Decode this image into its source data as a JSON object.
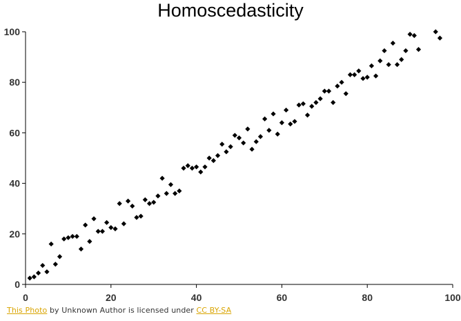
{
  "chart_data": {
    "type": "scatter",
    "title": "Homoscedasticity",
    "xlabel": "",
    "ylabel": "",
    "xlim": [
      0,
      100
    ],
    "ylim": [
      0,
      100
    ],
    "xticks": [
      "0",
      "20",
      "40",
      "60",
      "80",
      "100"
    ],
    "yticks": [
      "0",
      "20",
      "40",
      "60",
      "80",
      "100"
    ],
    "grid": false,
    "marker_color": "#000000",
    "points": [
      [
        1,
        2.5
      ],
      [
        2,
        3
      ],
      [
        3,
        4.5
      ],
      [
        4,
        7.5
      ],
      [
        5,
        5
      ],
      [
        6,
        16
      ],
      [
        7,
        8
      ],
      [
        8,
        11
      ],
      [
        9,
        18
      ],
      [
        10,
        18.5
      ],
      [
        11,
        19
      ],
      [
        12,
        19
      ],
      [
        13,
        14
      ],
      [
        14,
        23.5
      ],
      [
        15,
        17
      ],
      [
        16,
        26
      ],
      [
        17,
        21
      ],
      [
        18,
        21
      ],
      [
        19,
        24.5
      ],
      [
        20,
        22.5
      ],
      [
        21,
        22
      ],
      [
        22,
        32
      ],
      [
        23,
        24
      ],
      [
        24,
        33
      ],
      [
        25,
        31
      ],
      [
        26,
        26.5
      ],
      [
        27,
        27
      ],
      [
        28,
        33.5
      ],
      [
        29,
        32
      ],
      [
        30,
        32.5
      ],
      [
        31,
        35
      ],
      [
        32,
        42
      ],
      [
        33,
        36
      ],
      [
        34,
        39.5
      ],
      [
        35,
        36
      ],
      [
        36,
        37
      ],
      [
        37,
        46
      ],
      [
        38,
        47
      ],
      [
        39,
        46
      ],
      [
        40,
        46.5
      ],
      [
        41,
        44.5
      ],
      [
        42,
        46.5
      ],
      [
        43,
        50
      ],
      [
        44,
        49
      ],
      [
        45,
        51
      ],
      [
        46,
        55.5
      ],
      [
        47,
        52.5
      ],
      [
        48,
        54.5
      ],
      [
        49,
        59
      ],
      [
        50,
        58
      ],
      [
        51,
        56
      ],
      [
        52,
        61.5
      ],
      [
        53,
        53.5
      ],
      [
        54,
        56.5
      ],
      [
        55,
        58.5
      ],
      [
        56,
        65.5
      ],
      [
        57,
        61
      ],
      [
        58,
        67.5
      ],
      [
        59,
        59.5
      ],
      [
        60,
        64
      ],
      [
        61,
        69
      ],
      [
        62,
        63.5
      ],
      [
        63,
        64.5
      ],
      [
        64,
        71
      ],
      [
        65,
        71.5
      ],
      [
        66,
        67
      ],
      [
        67,
        70.5
      ],
      [
        68,
        72
      ],
      [
        69,
        73.5
      ],
      [
        70,
        76.5
      ],
      [
        71,
        76.5
      ],
      [
        72,
        72
      ],
      [
        73,
        78.5
      ],
      [
        74,
        80
      ],
      [
        75,
        75.5
      ],
      [
        76,
        83
      ],
      [
        77,
        83
      ],
      [
        78,
        84.5
      ],
      [
        79,
        81.5
      ],
      [
        80,
        82
      ],
      [
        81,
        86.5
      ],
      [
        82,
        82.5
      ],
      [
        83,
        88.5
      ],
      [
        84,
        92.5
      ],
      [
        85,
        87
      ],
      [
        86,
        95.5
      ],
      [
        87,
        87
      ],
      [
        88,
        89
      ],
      [
        89,
        92.5
      ],
      [
        90,
        99
      ],
      [
        91,
        98.5
      ],
      [
        92,
        93
      ],
      [
        96,
        100
      ],
      [
        97,
        97.5
      ]
    ]
  },
  "attribution": {
    "link1": "This Photo",
    "middle": " by Unknown Author is licensed under ",
    "link2": "CC BY-SA"
  }
}
